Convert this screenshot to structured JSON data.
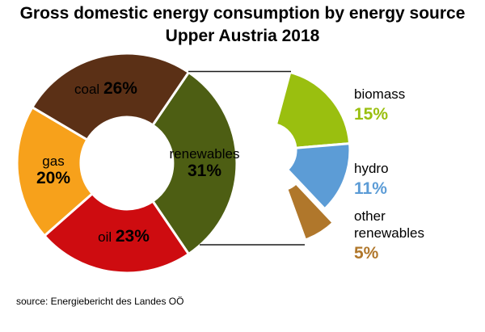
{
  "title": {
    "line1": "Gross domestic energy consumption by energy source",
    "line2": "Upper Austria 2018"
  },
  "source": "source: Energiebericht des Landes OÖ",
  "chart_data": {
    "type": "pie",
    "title": "Gross domestic energy consumption by energy source — Upper Austria 2018",
    "unit": "%",
    "donut": true,
    "legend_position": "right",
    "series": [
      {
        "name": "renewables",
        "value": 31,
        "pct_label": "31%",
        "color": "#4D5E13"
      },
      {
        "name": "oil",
        "value": 23,
        "pct_label": "23%",
        "color": "#CE0C10"
      },
      {
        "name": "gas",
        "value": 20,
        "pct_label": "20%",
        "color": "#F7A11B"
      },
      {
        "name": "coal",
        "value": 26,
        "pct_label": "26%",
        "color": "#5B3016"
      }
    ],
    "breakdown": {
      "of": "renewables",
      "total": 31,
      "series": [
        {
          "name": "biomass",
          "value": 15,
          "pct_label": "15%",
          "color": "#9ABF0F"
        },
        {
          "name": "hydro",
          "value": 11,
          "pct_label": "11%",
          "color": "#5C9CD6"
        },
        {
          "name": "other renewables",
          "value": 5,
          "pct_label": "5%",
          "color": "#B0772B"
        }
      ]
    },
    "layout_hints": {
      "start_angle_deg_from_north": 34.2,
      "clockwise": true,
      "breakdown_arc_span_deg": 145,
      "connector_lines": 2
    }
  }
}
